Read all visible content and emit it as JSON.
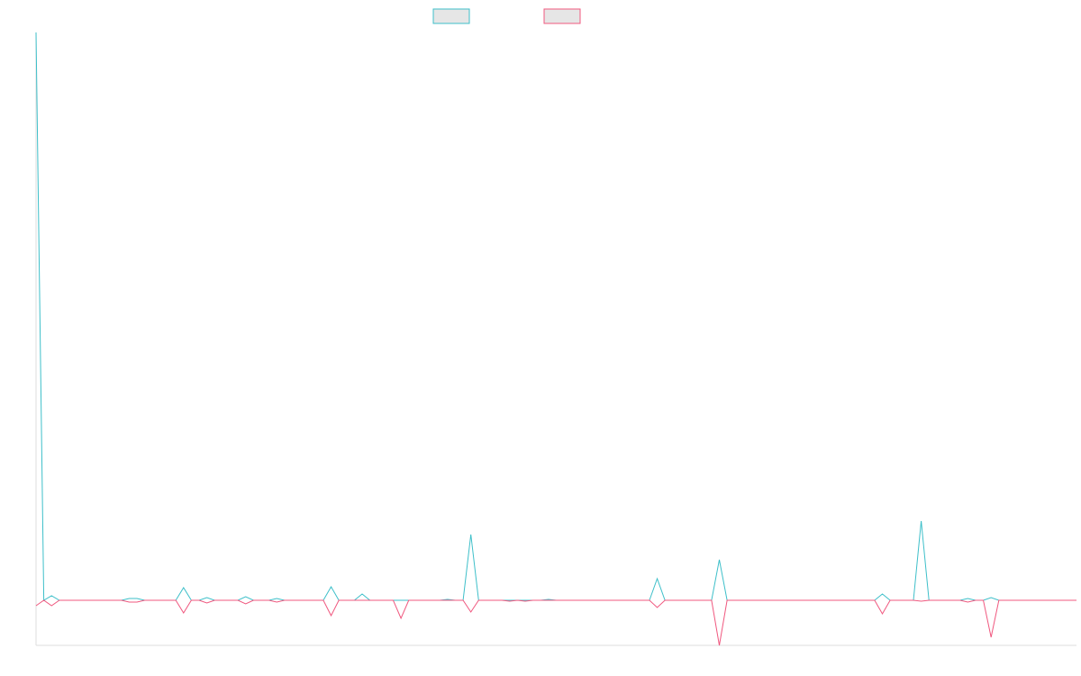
{
  "chart_data": {
    "type": "line",
    "categories": [
      null,
      null,
      null,
      null,
      null,
      null,
      null,
      null,
      null,
      null,
      null,
      null,
      null,
      null,
      null,
      null,
      null,
      null,
      null,
      null,
      null,
      null,
      null,
      null,
      null,
      null,
      null,
      null,
      null,
      null,
      null,
      null,
      null,
      null,
      null,
      null,
      null,
      null,
      null,
      null,
      null,
      null,
      null,
      null,
      null,
      null,
      null,
      null,
      null,
      null,
      null,
      null,
      null,
      null,
      null,
      null,
      null,
      null,
      null,
      null,
      null,
      null,
      null,
      null,
      null,
      null,
      null,
      null,
      null,
      null,
      null,
      null,
      null,
      null,
      null,
      null,
      null,
      null,
      null,
      null,
      null,
      null,
      null,
      null,
      null,
      null,
      null,
      null,
      null,
      null,
      null,
      null,
      null,
      null,
      null,
      null,
      null,
      null,
      null,
      null,
      null,
      null,
      null,
      null,
      null,
      null,
      null,
      null,
      null,
      null,
      null,
      null,
      null,
      null,
      null,
      null,
      null,
      null,
      null,
      null,
      null,
      null,
      null,
      null,
      null,
      null,
      null,
      null,
      null,
      null,
      null,
      null,
      null,
      null,
      null
    ],
    "ylim": [
      -50,
      630
    ],
    "series": [
      {
        "color": "#3dbfc9",
        "values": [
          630,
          0,
          5,
          0,
          0,
          0,
          0,
          0,
          0,
          0,
          0,
          0,
          2,
          2,
          0,
          0,
          0,
          0,
          0,
          14,
          0,
          0,
          3,
          0,
          0,
          0,
          0,
          4,
          0,
          0,
          0,
          2,
          0,
          0,
          0,
          0,
          0,
          0,
          15,
          0,
          0,
          0,
          7,
          0,
          0,
          0,
          0,
          0,
          0,
          0,
          0,
          0,
          0,
          1,
          0,
          0,
          73,
          0,
          0,
          0,
          0,
          0,
          0,
          0,
          0,
          0,
          1,
          0,
          0,
          0,
          0,
          0,
          0,
          0,
          0,
          0,
          0,
          0,
          0,
          0,
          24,
          0,
          0,
          0,
          0,
          0,
          0,
          0,
          45,
          0,
          0,
          0,
          0,
          0,
          0,
          0,
          0,
          0,
          0,
          0,
          0,
          0,
          0,
          0,
          0,
          0,
          0,
          0,
          0,
          7,
          0,
          0,
          0,
          0,
          88,
          0,
          0,
          0,
          0,
          0,
          2,
          0,
          0,
          3,
          0,
          0,
          0,
          0,
          0,
          0,
          0,
          0,
          0,
          0,
          0
        ]
      },
      {
        "color": "#f0587f",
        "values": [
          -6,
          0,
          -6,
          0,
          0,
          0,
          0,
          0,
          0,
          0,
          0,
          0,
          -2,
          -2,
          0,
          0,
          0,
          0,
          0,
          -14,
          0,
          0,
          -3,
          0,
          0,
          0,
          0,
          -4,
          0,
          0,
          0,
          -2,
          0,
          0,
          0,
          0,
          0,
          0,
          -17,
          0,
          0,
          0,
          0,
          0,
          0,
          0,
          0,
          -20,
          0,
          0,
          0,
          0,
          0,
          0,
          0,
          0,
          -13,
          0,
          0,
          0,
          0,
          -1,
          0,
          -1,
          0,
          0,
          0,
          0,
          0,
          0,
          0,
          0,
          0,
          0,
          0,
          0,
          0,
          0,
          0,
          0,
          -8,
          0,
          0,
          0,
          0,
          0,
          0,
          0,
          -50,
          0,
          0,
          0,
          0,
          0,
          0,
          0,
          0,
          0,
          0,
          0,
          0,
          0,
          0,
          0,
          0,
          0,
          0,
          0,
          0,
          -15,
          0,
          0,
          0,
          0,
          -1,
          0,
          0,
          0,
          0,
          0,
          -2,
          0,
          0,
          -41,
          0,
          0,
          0,
          0,
          0,
          0,
          0,
          0,
          0,
          0,
          0
        ]
      }
    ]
  }
}
